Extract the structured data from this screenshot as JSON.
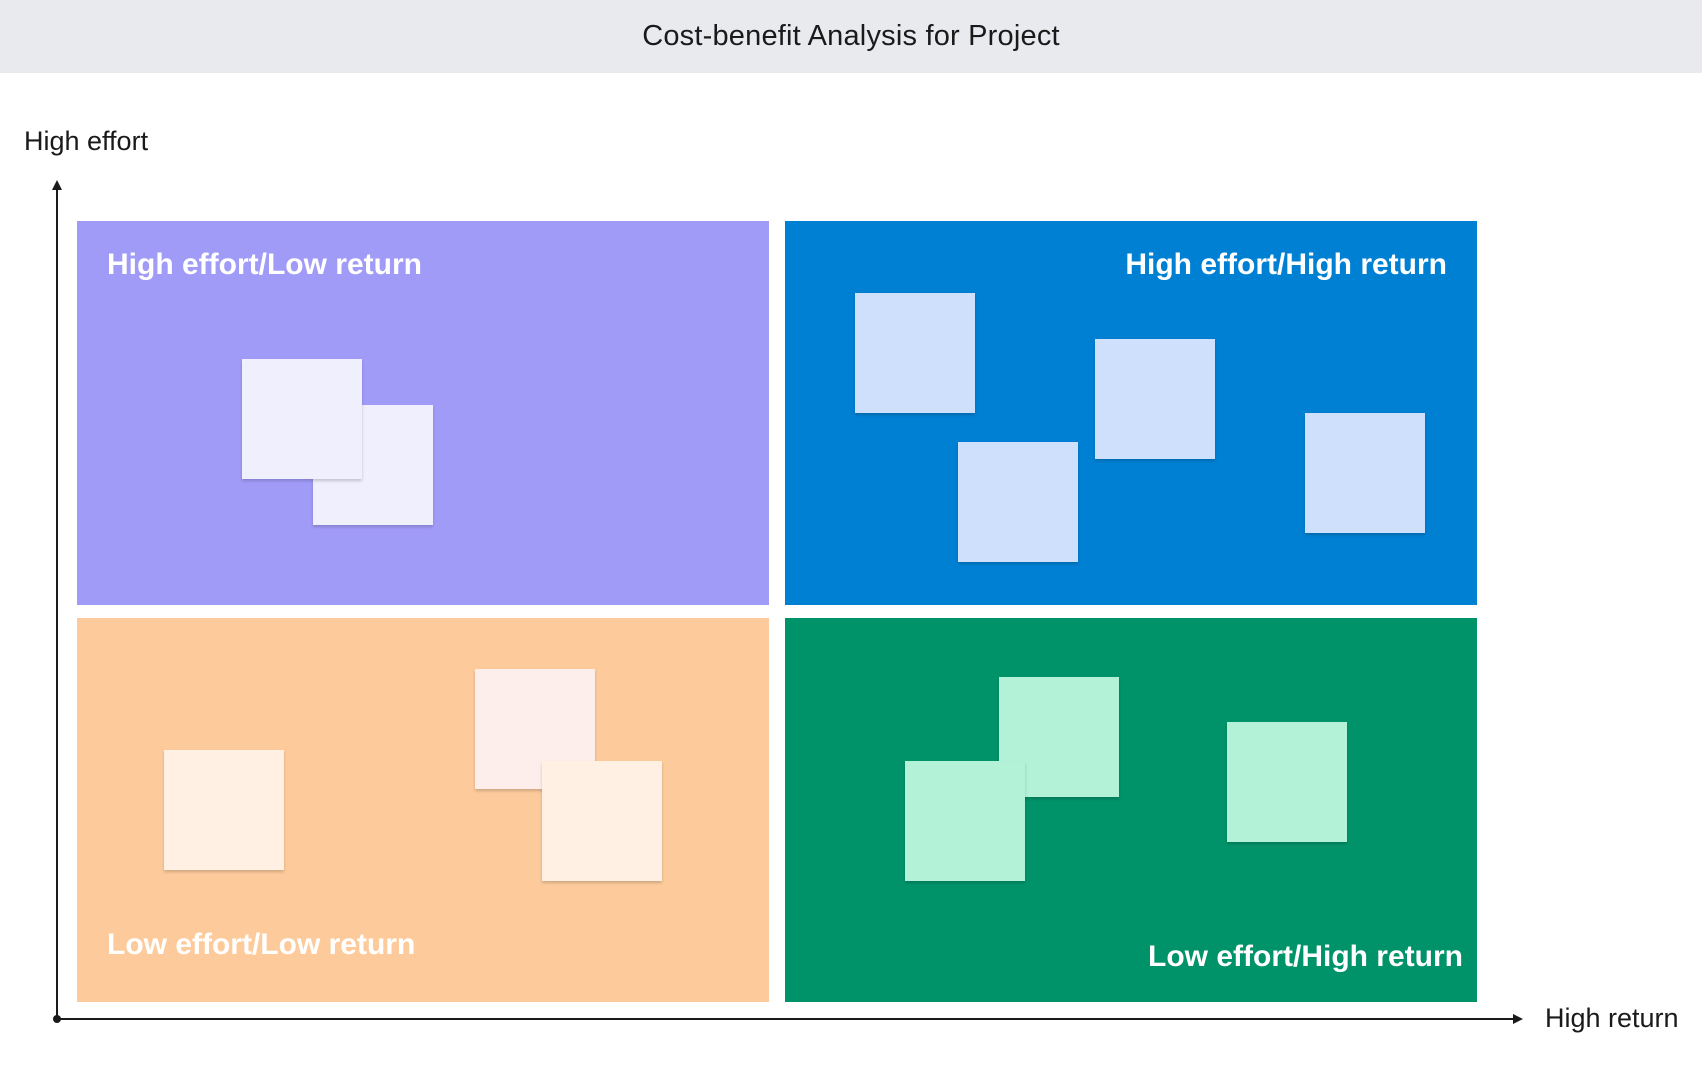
{
  "header": {
    "title": "Cost-benefit Analysis for Project"
  },
  "axes": {
    "y_label": "High effort",
    "x_label": "High return"
  },
  "quadrants": [
    {
      "id": "high-effort-low-return",
      "title": "High effort/Low return",
      "color": "#a19bf8",
      "note_color": "#efeffd",
      "notes": 2
    },
    {
      "id": "high-effort-high-return",
      "title": "High effort/High return",
      "color": "#0080d3",
      "note_color": "#cfe0fd",
      "notes": 4
    },
    {
      "id": "low-effort-low-return",
      "title": "Low effort/Low return",
      "color": "#fdcb9b",
      "note_colors": [
        "#fff0e3",
        "#fdeeeb",
        "#fff0e3"
      ],
      "notes": 3
    },
    {
      "id": "low-effort-high-return",
      "title": "Low effort/High return",
      "color": "#00936a",
      "note_color": "#b4f2d8",
      "notes": 3
    }
  ]
}
